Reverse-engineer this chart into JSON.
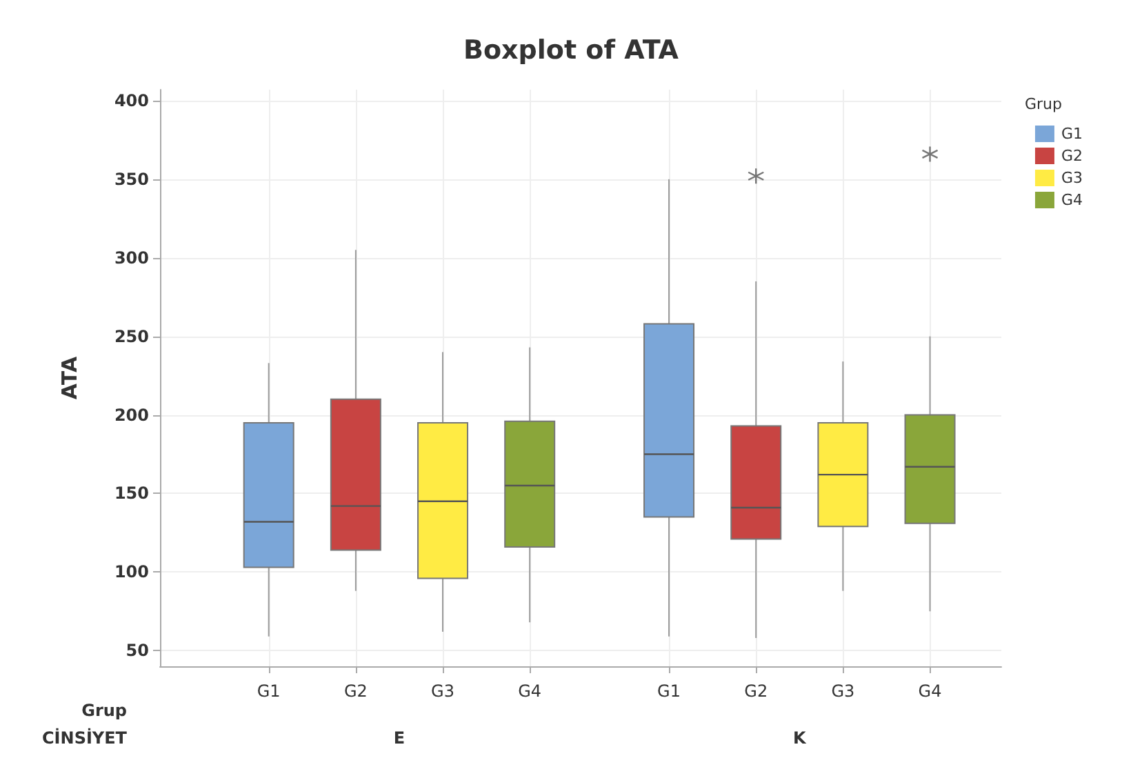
{
  "chart_data": {
    "type": "box",
    "title": "Boxplot of ATA",
    "ylabel": "ATA",
    "xlabel": "CİNSİYET",
    "legend_title": "Grup",
    "annotations": [
      "Grup"
    ],
    "categories": [
      "E",
      "K"
    ],
    "series": [
      {
        "name": "G1",
        "color": "#7ba6d8",
        "boxes": [
          {
            "low": 59,
            "q1": 103,
            "median": 132,
            "q3": 195,
            "high": 233
          },
          {
            "low": 59,
            "q1": 135,
            "median": 175,
            "q3": 258,
            "high": 350
          }
        ]
      },
      {
        "name": "G2",
        "color": "#c84442",
        "boxes": [
          {
            "low": 88,
            "q1": 114,
            "median": 142,
            "q3": 210,
            "high": 305
          },
          {
            "low": 58,
            "q1": 121,
            "median": 141,
            "q3": 193,
            "high": 285,
            "outliers": [
              352
            ]
          }
        ]
      },
      {
        "name": "G3",
        "color": "#ffeb44",
        "boxes": [
          {
            "low": 62,
            "q1": 96,
            "median": 145,
            "q3": 195,
            "high": 240
          },
          {
            "low": 88,
            "q1": 129,
            "median": 162,
            "q3": 195,
            "high": 234
          }
        ]
      },
      {
        "name": "G4",
        "color": "#8aa63a",
        "boxes": [
          {
            "low": 68,
            "q1": 116,
            "median": 155,
            "q3": 196,
            "high": 243
          },
          {
            "low": 75,
            "q1": 131,
            "median": 167,
            "q3": 200,
            "high": 250,
            "outliers": [
              366
            ]
          }
        ]
      }
    ],
    "ylim": [
      40,
      407
    ],
    "yticks": [
      50,
      100,
      150,
      200,
      250,
      300,
      350,
      400
    ],
    "grid": true,
    "legend": "top right"
  }
}
